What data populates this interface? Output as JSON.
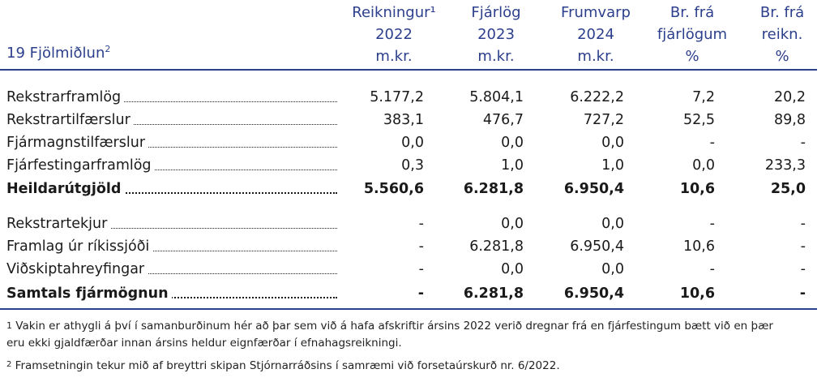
{
  "table": {
    "title": "19 Fjölmiðlun",
    "title_sup": "2",
    "columns": [
      {
        "lines": [
          "Reikningur¹",
          "2022",
          "m.kr."
        ]
      },
      {
        "lines": [
          "Fjárlög",
          "2023",
          "m.kr."
        ]
      },
      {
        "lines": [
          "Frumvarp",
          "2024",
          "m.kr."
        ]
      },
      {
        "lines": [
          "Br. frá",
          "fjárlögum",
          "%"
        ]
      },
      {
        "lines": [
          "Br. frá",
          "reikn.",
          "%"
        ]
      }
    ],
    "rows": [
      {
        "label": "Rekstrarframlög",
        "values": [
          "5.177,2",
          "5.804,1",
          "6.222,2",
          "7,2",
          "20,2"
        ]
      },
      {
        "label": "Rekstrartilfærslur",
        "values": [
          "383,1",
          "476,7",
          "727,2",
          "52,5",
          "89,8"
        ]
      },
      {
        "label": "Fjármagnstilfærslur",
        "values": [
          "0,0",
          "0,0",
          "0,0",
          "-",
          "-"
        ]
      },
      {
        "label": "Fjárfestingarframlög",
        "values": [
          "0,3",
          "1,0",
          "1,0",
          "0,0",
          "233,3"
        ]
      },
      {
        "label": "Heildarútgjöld",
        "values": [
          "5.560,6",
          "6.281,8",
          "6.950,4",
          "10,6",
          "25,0"
        ]
      },
      {
        "label": "Rekstrartekjur",
        "values": [
          "-",
          "0,0",
          "0,0",
          "-",
          "-"
        ]
      },
      {
        "label": "Framlag úr ríkissjóði",
        "values": [
          "-",
          "6.281,8",
          "6.950,4",
          "10,6",
          "-"
        ]
      },
      {
        "label": "Viðskiptahreyfingar",
        "values": [
          "-",
          "0,0",
          "0,0",
          "-",
          "-"
        ]
      },
      {
        "label": "Samtals fjármögnun",
        "values": [
          "-",
          "6.281,8",
          "6.950,4",
          "10,6",
          "-"
        ]
      }
    ]
  },
  "footnotes": {
    "note1_sup": "1",
    "note1_line1": "Vakin er athygli á því í samanburðinum hér að þar sem við á hafa afskriftir ársins 2022 verið dregnar frá en fjárfestingum bætt við en þær",
    "note1_line2": "eru ekki gjaldfærðar innan ársins heldur eignfærðar í efnahagsreikningi.",
    "note2_sup": "2",
    "note2_text": "Framsetningin tekur mið af breyttri skipan Stjórnarráðsins í samræmi við forsetaúrskurð nr. 6/2022."
  }
}
